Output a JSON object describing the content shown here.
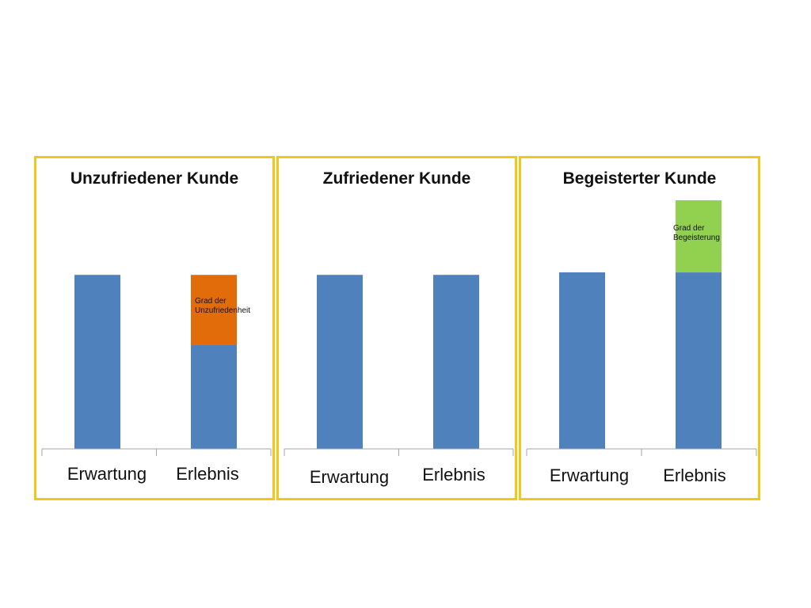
{
  "colors": {
    "frame": "#f5c518",
    "base": "#4f81bd",
    "dissatisfaction": "#e36c0a",
    "delight": "#92d050"
  },
  "chart_data": [
    {
      "type": "bar",
      "stacked": true,
      "title": "Unzufriedener Kunde",
      "categories": [
        "Erwartung",
        "Erlebnis"
      ],
      "ylim": [
        0,
        100
      ],
      "series": [
        {
          "values": [
            70,
            42
          ],
          "color": "#4f81bd"
        },
        {
          "name": "Grad der Unzufriedenheit",
          "values": [
            0,
            28
          ],
          "color": "#e36c0a"
        }
      ]
    },
    {
      "type": "bar",
      "stacked": true,
      "title": "Zufriedener Kunde",
      "categories": [
        "Erwartung",
        "Erlebnis"
      ],
      "ylim": [
        0,
        100
      ],
      "series": [
        {
          "values": [
            70,
            70
          ],
          "color": "#4f81bd"
        }
      ]
    },
    {
      "type": "bar",
      "stacked": true,
      "title": "Begeisterter Kunde",
      "categories": [
        "Erwartung",
        "Erlebnis"
      ],
      "ylim": [
        0,
        100
      ],
      "series": [
        {
          "values": [
            71,
            71
          ],
          "color": "#4f81bd"
        },
        {
          "name": "Grad der Begeisterung",
          "values": [
            0,
            29
          ],
          "color": "#92d050"
        }
      ]
    }
  ]
}
